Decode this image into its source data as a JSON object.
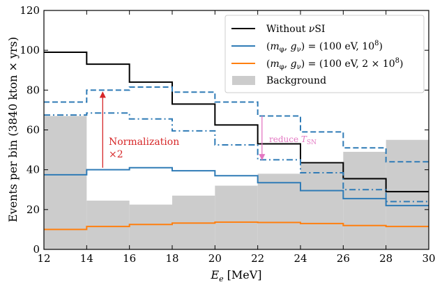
{
  "chart_data": {
    "type": "line",
    "step": true,
    "title": "",
    "xlabel": "E_e [MeV]",
    "xlabel_parts": {
      "symbol": "E",
      "sub": "e",
      "unit": "[MeV]"
    },
    "ylabel": "Events per bin (3840 kton × yrs)",
    "xlim": [
      12,
      30
    ],
    "ylim": [
      0,
      120
    ],
    "xticks": [
      12,
      14,
      16,
      18,
      20,
      22,
      24,
      26,
      28,
      30
    ],
    "yticks": [
      0,
      20,
      40,
      60,
      80,
      100,
      120
    ],
    "bin_edges": [
      12,
      14,
      16,
      18,
      20,
      22,
      24,
      26,
      28,
      30
    ],
    "background": {
      "name": "Background",
      "color": "#cccccc",
      "values": [
        67,
        24.5,
        22.5,
        27,
        32,
        38,
        43,
        49,
        55
      ]
    },
    "series": [
      {
        "name": "Without νSI",
        "color": "#000000",
        "style": "solid",
        "values": [
          99,
          93,
          84,
          73,
          62.5,
          53,
          43.5,
          35.5,
          29
        ]
      },
      {
        "name": "(m_φ, g_ν) = (100 eV, 10^8)",
        "color": "#2f7bb6",
        "style": "solid",
        "values": [
          37.5,
          40,
          41,
          39.5,
          37,
          33.5,
          29.5,
          25.5,
          22
        ]
      },
      {
        "name": "(m_φ, g_ν) = (100 eV, 10^8) × 2",
        "color": "#2f7bb6",
        "style": "dashed",
        "values": [
          74,
          80,
          81.5,
          79,
          74,
          67,
          59,
          51,
          44
        ]
      },
      {
        "name": "(m_φ, g_ν) = (100 eV, 10^8), reduced T_SN",
        "color": "#2f7bb6",
        "style": "dashdot",
        "values": [
          67.5,
          68.5,
          65.5,
          59.5,
          52.5,
          45,
          38.5,
          30,
          24
        ]
      },
      {
        "name": "(m_φ, g_ν) = (100 eV, 2 × 10^8)",
        "color": "#ff7f0e",
        "style": "solid",
        "values": [
          10,
          11.5,
          12.5,
          13.2,
          13.7,
          13.5,
          13,
          12,
          11.5
        ]
      }
    ],
    "legend_placement": "top-right",
    "legend": [
      {
        "label_pre": "Without ",
        "label_nu": "ν",
        "label_post": "SI",
        "kind": "line",
        "color": "#000000"
      },
      {
        "label_pre": "(",
        "label_m": "m",
        "label_m_sub": "φ",
        "label_mid": ",  ",
        "label_g": "g",
        "label_g_sub": "ν",
        "label_eq": ") = (100 eV,  10",
        "label_exp": "8",
        "label_end": ")",
        "kind": "line",
        "color": "#2f7bb6"
      },
      {
        "label_pre": "(",
        "label_m": "m",
        "label_m_sub": "φ",
        "label_mid": ",  ",
        "label_g": "g",
        "label_g_sub": "ν",
        "label_eq": ") = (100 eV,  2 × 10",
        "label_exp": "8",
        "label_end": ")",
        "kind": "line",
        "color": "#ff7f0e"
      },
      {
        "label_pre": "Background",
        "kind": "patch",
        "color": "#cccccc"
      }
    ],
    "annotations": [
      {
        "id": "normalization",
        "line1": "Normalization",
        "line2": "×2",
        "color": "#d62728",
        "arrow_x": 14.75,
        "arrow_from": 41,
        "arrow_to": 79
      },
      {
        "id": "reduce",
        "text_pre": "reduce ",
        "text_sym": "T",
        "text_sub": "SN",
        "color": "#e377c2",
        "arrow_x": 22.2,
        "arrow_from": 67,
        "arrow_to": 45
      }
    ]
  }
}
